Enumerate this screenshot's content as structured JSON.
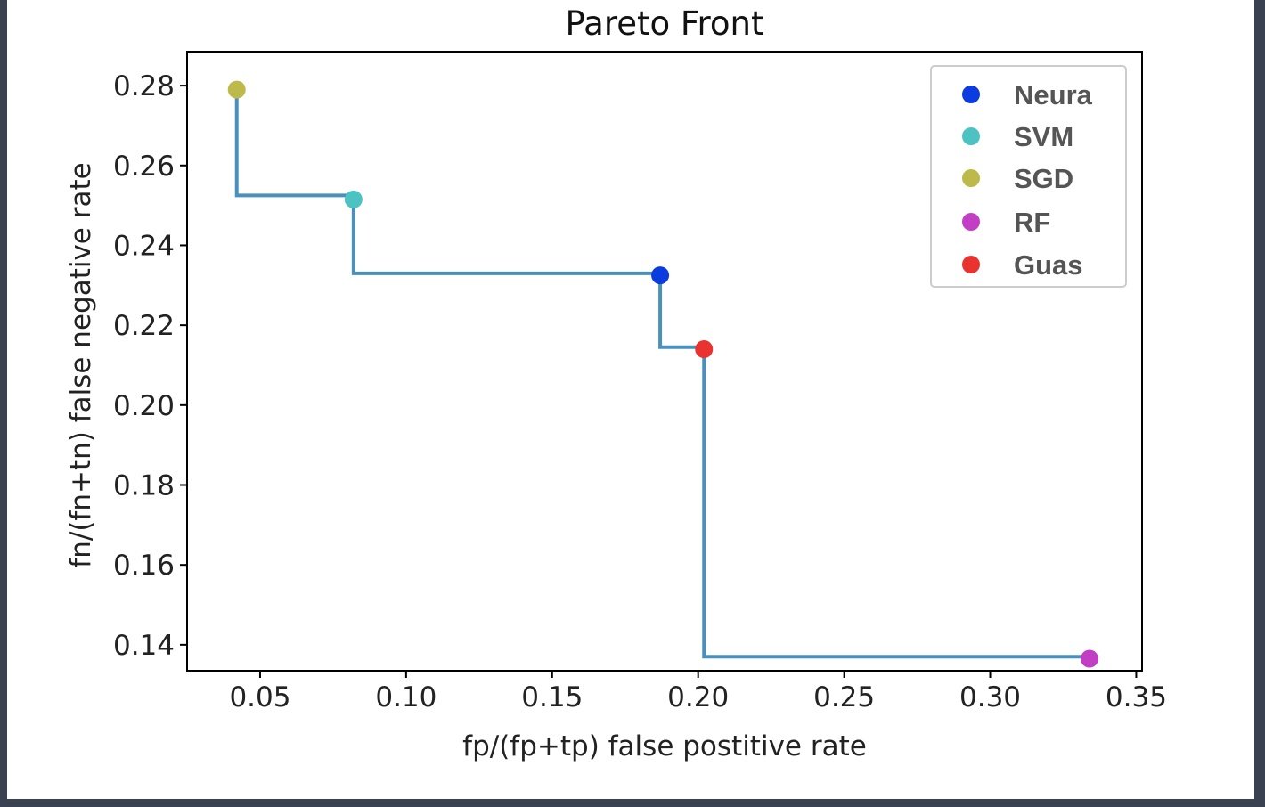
{
  "chart_data": {
    "type": "scatter",
    "title": "Pareto Front",
    "xlabel": "fp/(fp+tp) false postitive rate",
    "ylabel": "fn/(fn+tn) false negative rate",
    "xlim": [
      0.025,
      0.352
    ],
    "ylim": [
      0.1335,
      0.2885
    ],
    "xticks": [
      0.05,
      0.1,
      0.15,
      0.2,
      0.25,
      0.3,
      0.35
    ],
    "xtick_labels": [
      "0.05",
      "0.10",
      "0.15",
      "0.20",
      "0.25",
      "0.30",
      "0.35"
    ],
    "yticks": [
      0.14,
      0.16,
      0.18,
      0.2,
      0.22,
      0.24,
      0.26,
      0.28
    ],
    "ytick_labels": [
      "0.14",
      "0.16",
      "0.18",
      "0.20",
      "0.22",
      "0.24",
      "0.26",
      "0.28"
    ],
    "grid": false,
    "legend_position": "top-right",
    "series": [
      {
        "name": "Neura",
        "color": "#0a3ce0",
        "x": 0.187,
        "y": 0.2325
      },
      {
        "name": "SVM",
        "color": "#4cc2c2",
        "x": 0.082,
        "y": 0.2515
      },
      {
        "name": "SGD",
        "color": "#bdb94a",
        "x": 0.042,
        "y": 0.279
      },
      {
        "name": "RF",
        "color": "#c23ec4",
        "x": 0.334,
        "y": 0.1365
      },
      {
        "name": "Guas",
        "color": "#e8332e",
        "x": 0.202,
        "y": 0.214
      }
    ],
    "pareto_line": {
      "color": "#4a90bd",
      "points": [
        [
          0.042,
          0.279
        ],
        [
          0.042,
          0.2525
        ],
        [
          0.082,
          0.2525
        ],
        [
          0.082,
          0.233
        ],
        [
          0.187,
          0.233
        ],
        [
          0.187,
          0.2145
        ],
        [
          0.202,
          0.2145
        ],
        [
          0.202,
          0.137
        ],
        [
          0.334,
          0.137
        ]
      ]
    }
  }
}
